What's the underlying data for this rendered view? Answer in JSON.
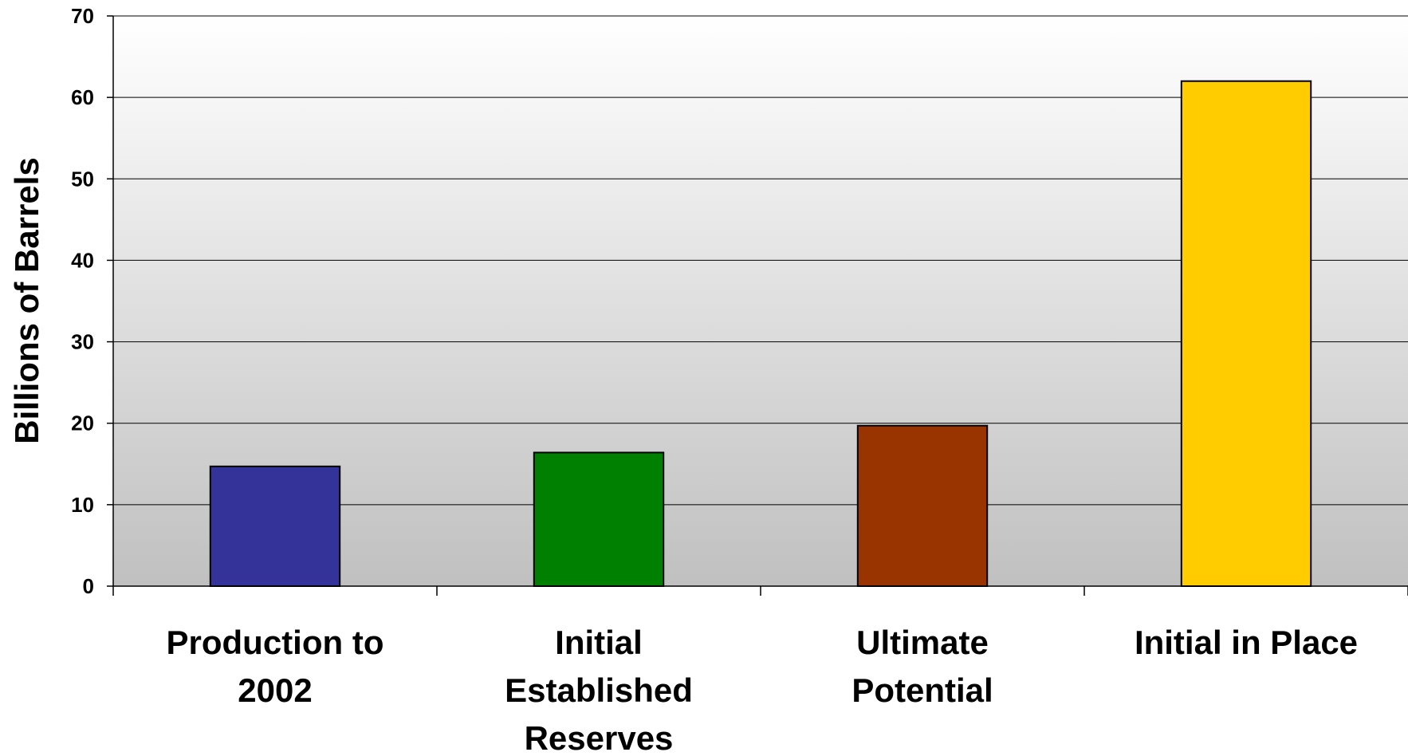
{
  "chart_data": {
    "type": "bar",
    "title": "",
    "xlabel": "",
    "ylabel": "Billions of Barrels",
    "ylim": [
      0,
      70
    ],
    "yticks": [
      "0",
      "10",
      "20",
      "30",
      "40",
      "50",
      "60",
      "70"
    ],
    "grid": true,
    "categories": [
      [
        "Production to",
        "2002"
      ],
      [
        "Initial",
        "Established",
        "Reserves"
      ],
      [
        "Ultimate",
        "Potential"
      ],
      [
        "Initial in Place"
      ]
    ],
    "values": [
      14.7,
      16.4,
      19.7,
      62.0
    ],
    "colors": [
      "#333399",
      "#008000",
      "#993300",
      "#FFCC00"
    ],
    "background_gradient": [
      "#ffffff",
      "#c0c0c0"
    ]
  }
}
